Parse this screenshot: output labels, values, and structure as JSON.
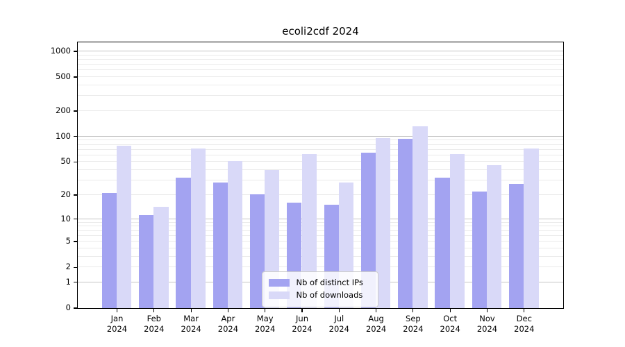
{
  "title": "ecoli2cdf 2024",
  "colors": {
    "distinct_ips": "#a3a3f1",
    "downloads": "#d9d9f8",
    "grid_major": "#c3c3c3",
    "grid_minor": "#eaeaea",
    "axis": "#000000",
    "legend_border": "#cccccc"
  },
  "legend": {
    "items": [
      {
        "label": "Nb of distinct IPs"
      },
      {
        "label": "Nb of downloads"
      }
    ]
  },
  "chart_data": {
    "type": "bar",
    "title": "ecoli2cdf 2024",
    "categories": [
      "Jan",
      "Feb",
      "Mar",
      "Apr",
      "May",
      "Jun",
      "Jul",
      "Aug",
      "Sep",
      "Oct",
      "Nov",
      "Dec"
    ],
    "year_label": "2024",
    "series": [
      {
        "name": "Nb of distinct IPs",
        "color": "#a3a3f1",
        "values": [
          21,
          11,
          32,
          28,
          20,
          16,
          15,
          64,
          94,
          32,
          22,
          27
        ]
      },
      {
        "name": "Nb of downloads",
        "color": "#d9d9f8",
        "values": [
          78,
          14,
          71,
          51,
          40,
          61,
          28,
          95,
          130,
          61,
          45,
          71
        ]
      }
    ],
    "yscale": "log10(1+v)",
    "y_ticks": [
      0,
      1,
      2,
      5,
      10,
      20,
      50,
      100,
      200,
      500,
      1000
    ],
    "ylim": [
      0,
      1280
    ],
    "xlabel": "",
    "ylabel": "",
    "grid": true,
    "legend_position": "lower center"
  }
}
